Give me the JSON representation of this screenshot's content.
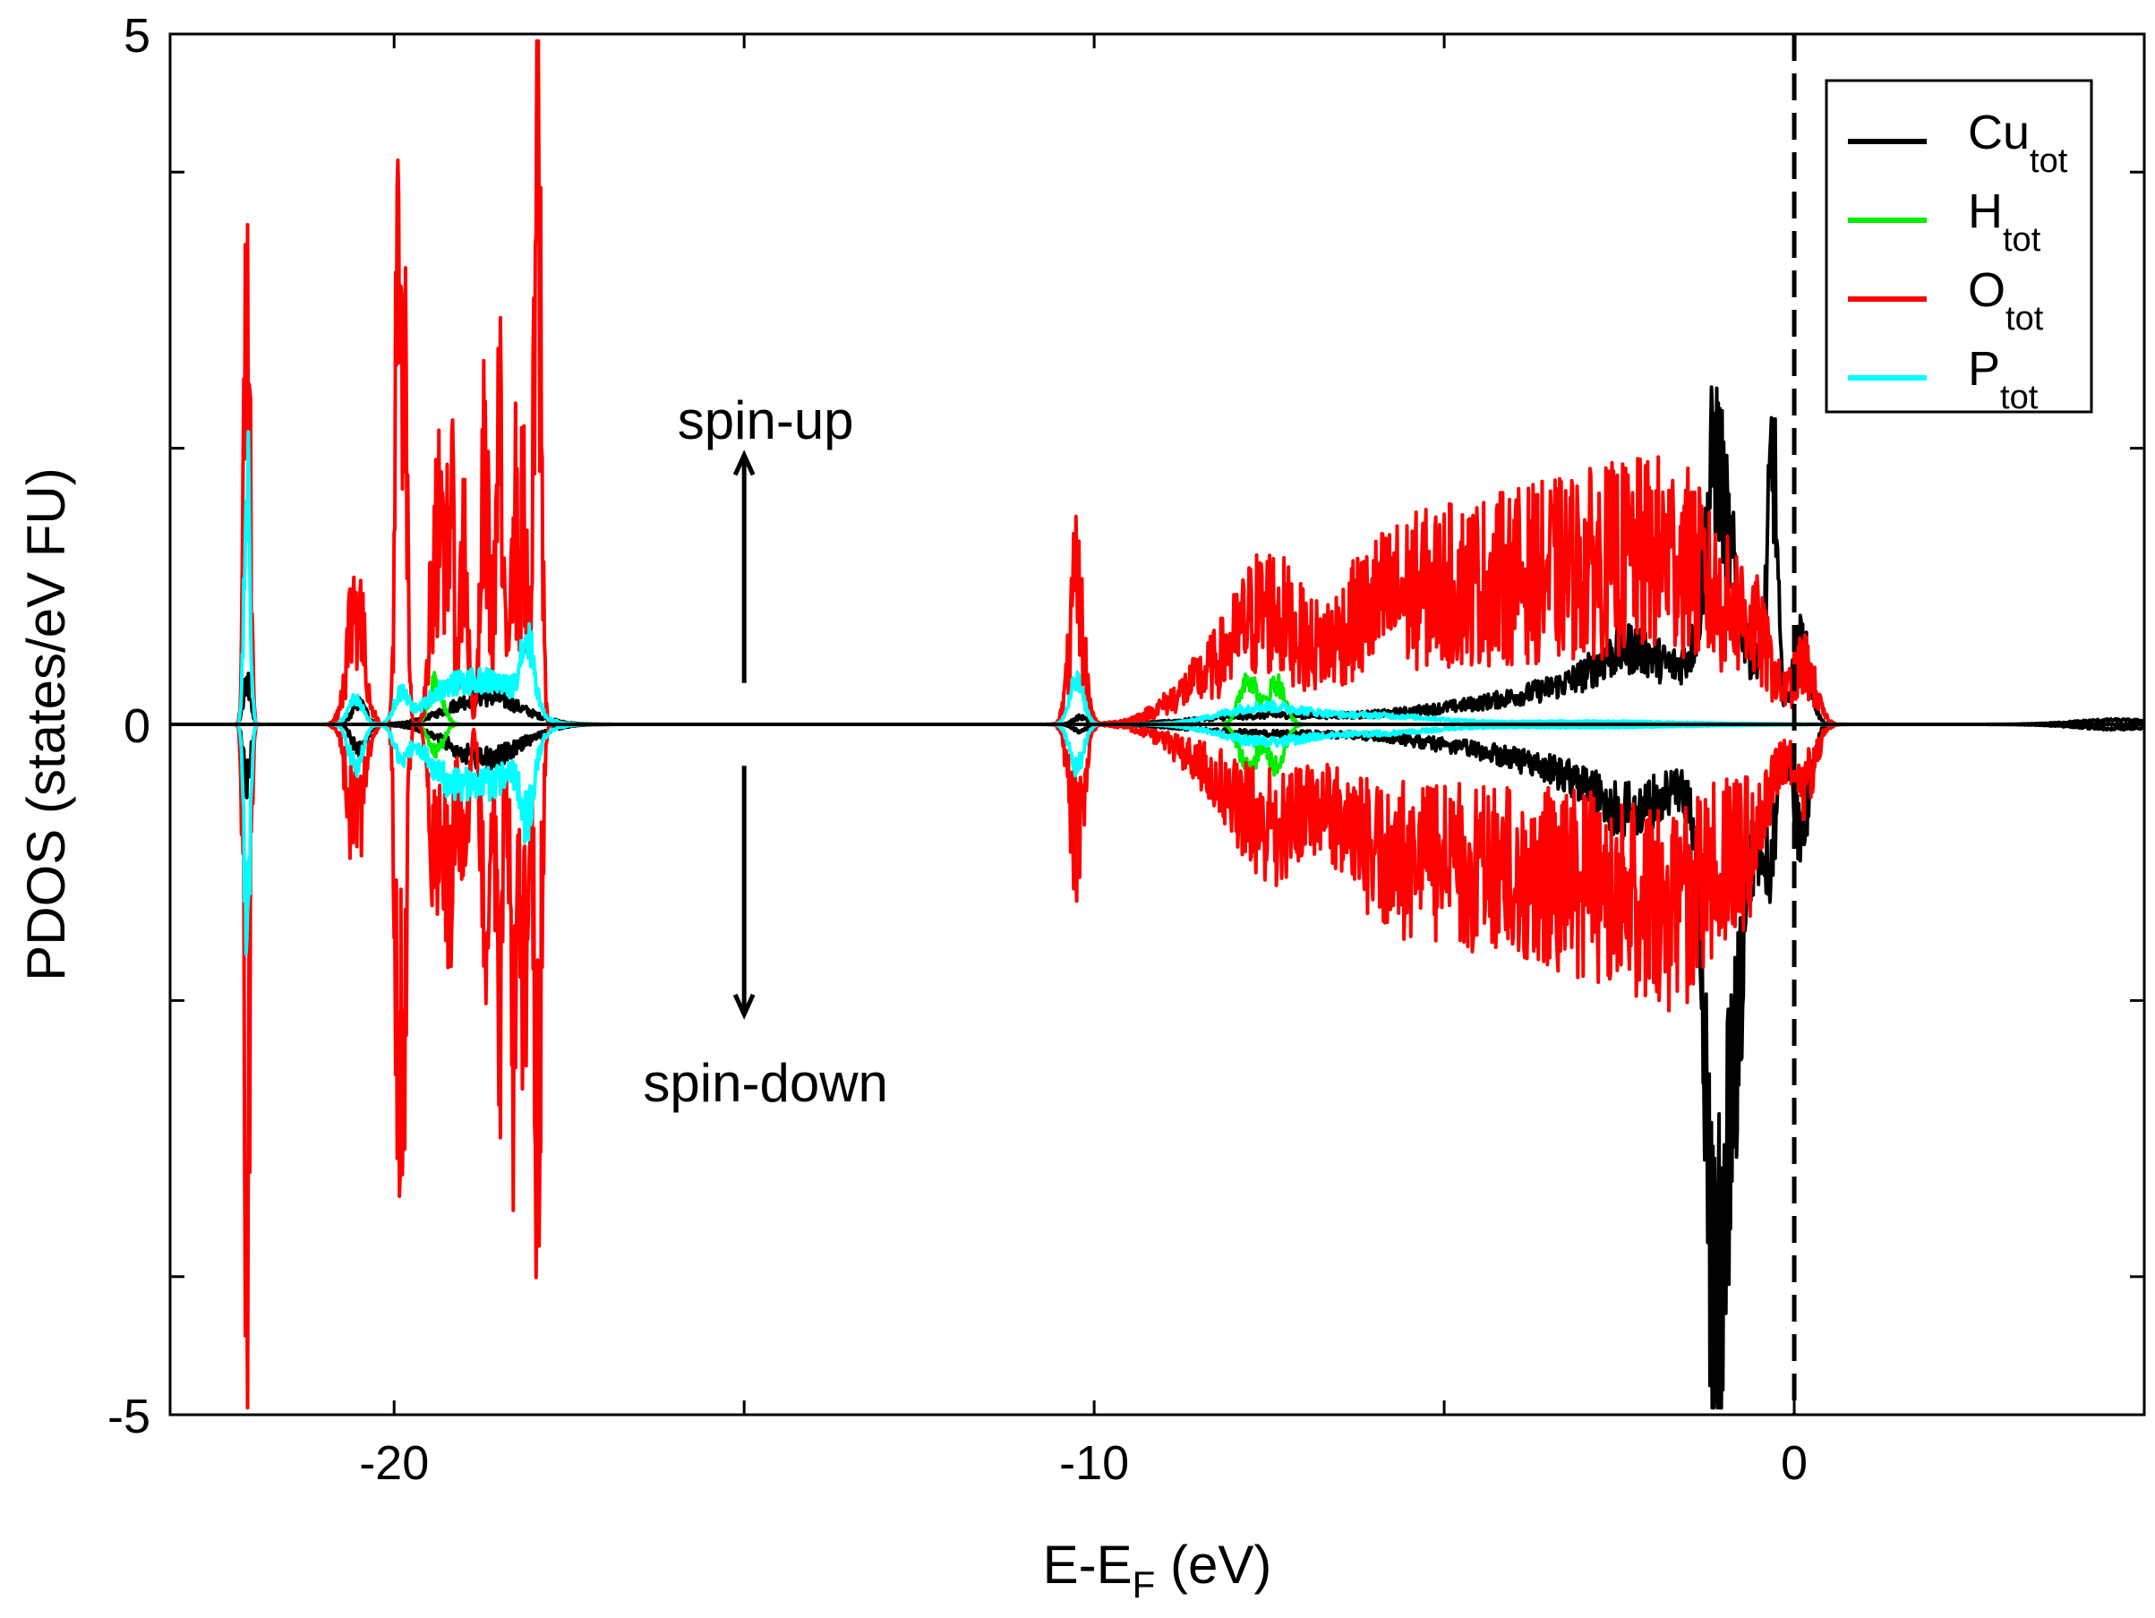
{
  "chart_data": {
    "type": "line",
    "xlabel_main": "E-E",
    "xlabel_sub": "F",
    "xlabel_tail": " (eV)",
    "ylabel": "PDOS (states/eV FU)",
    "xlim": [
      -23.2,
      5.0
    ],
    "ylim": [
      -5,
      5
    ],
    "x_ticks_labeled": [
      -20,
      -10,
      0
    ],
    "x_tick_labels": [
      "-20",
      "-10",
      "0"
    ],
    "x_ticks_minor": [
      -15,
      -5
    ],
    "y_ticks_labeled": [
      -5,
      0,
      5
    ],
    "y_tick_labels": [
      "-5",
      "0",
      "5"
    ],
    "y_ticks_minor": [
      -4,
      -2,
      2,
      4
    ],
    "fermi_level": 0,
    "annotations": {
      "spin_up": "spin-up",
      "spin_down": "spin-down",
      "arrow_x": -15
    },
    "legend_position": "top-right",
    "series": [
      {
        "name": "Cu",
        "sub": "tot",
        "color": "#000000",
        "noise": 0.35,
        "peaks": [
          {
            "c": -22.1,
            "w": 0.05,
            "up": 0.3,
            "dn": 0.4
          },
          {
            "c": -20.5,
            "w": 0.1,
            "up": 0.15,
            "dn": 0.2
          },
          {
            "c": -18.7,
            "w": 0.5,
            "up": 0.2,
            "dn": 0.25
          },
          {
            "c": -10.2,
            "w": 0.1,
            "up": 0.05,
            "dn": 0.05
          },
          {
            "c": -7.5,
            "w": 1.0,
            "up": 0.06,
            "dn": 0.06
          },
          {
            "c": -4.5,
            "w": 1.2,
            "up": 0.12,
            "dn": 0.15
          },
          {
            "c": -3.0,
            "w": 0.8,
            "up": 0.2,
            "dn": 0.25
          },
          {
            "c": -2.2,
            "w": 0.5,
            "up": 0.4,
            "dn": 0.45
          },
          {
            "c": -1.2,
            "w": 0.3,
            "up": 0.5,
            "dn": 0.5
          },
          {
            "c": -1.15,
            "w": 0.12,
            "up": 1.0,
            "dn": 2.8
          },
          {
            "c": -0.9,
            "w": 0.2,
            "up": 0.8,
            "dn": 2.2
          },
          {
            "c": -0.4,
            "w": 0.12,
            "up": 0.6,
            "dn": 0.8
          },
          {
            "c": -0.3,
            "w": 0.06,
            "up": 1.5,
            "dn": 0.3
          },
          {
            "c": 0.1,
            "w": 0.12,
            "up": 0.6,
            "dn": 0.8
          },
          {
            "c": 4.6,
            "w": 0.6,
            "up": 0.03,
            "dn": 0.03
          }
        ]
      },
      {
        "name": "H",
        "sub": "tot",
        "color": "#00ee00",
        "noise": 0.3,
        "peaks": [
          {
            "c": -19.4,
            "w": 0.1,
            "up": 0.3,
            "dn": 0.2
          },
          {
            "c": -7.8,
            "w": 0.12,
            "up": 0.35,
            "dn": 0.35
          },
          {
            "c": -7.4,
            "w": 0.12,
            "up": 0.3,
            "dn": 0.3
          }
        ]
      },
      {
        "name": "O",
        "sub": "tot",
        "color": "#ff0000",
        "noise": 0.6,
        "peaks": [
          {
            "c": -22.1,
            "w": 0.04,
            "up": 3.6,
            "dn": 3.8
          },
          {
            "c": -20.55,
            "w": 0.12,
            "up": 0.9,
            "dn": 0.8
          },
          {
            "c": -19.95,
            "w": 0.04,
            "up": 2.8,
            "dn": 2.7
          },
          {
            "c": -19.85,
            "w": 0.04,
            "up": 2.2,
            "dn": 2.0
          },
          {
            "c": -19.4,
            "w": 0.08,
            "up": 1.5,
            "dn": 1.2
          },
          {
            "c": -19.2,
            "w": 0.06,
            "up": 1.6,
            "dn": 1.3
          },
          {
            "c": -19.0,
            "w": 0.05,
            "up": 1.4,
            "dn": 1.4
          },
          {
            "c": -18.7,
            "w": 0.06,
            "up": 1.8,
            "dn": 1.5
          },
          {
            "c": -18.5,
            "w": 0.05,
            "up": 2.0,
            "dn": 2.0
          },
          {
            "c": -18.3,
            "w": 0.05,
            "up": 1.8,
            "dn": 2.2
          },
          {
            "c": -18.15,
            "w": 0.05,
            "up": 1.5,
            "dn": 2.1
          },
          {
            "c": -17.95,
            "w": 0.05,
            "up": 3.9,
            "dn": 3.0
          },
          {
            "c": -10.25,
            "w": 0.1,
            "up": 0.95,
            "dn": 0.85
          },
          {
            "c": -8.2,
            "w": 0.6,
            "up": 0.35,
            "dn": 0.3
          },
          {
            "c": -7.5,
            "w": 0.4,
            "up": 0.55,
            "dn": 0.5
          },
          {
            "c": -6.2,
            "w": 0.7,
            "up": 0.55,
            "dn": 0.6
          },
          {
            "c": -5.0,
            "w": 0.8,
            "up": 0.7,
            "dn": 0.7
          },
          {
            "c": -3.6,
            "w": 0.8,
            "up": 0.8,
            "dn": 0.8
          },
          {
            "c": -2.3,
            "w": 0.7,
            "up": 0.85,
            "dn": 0.85
          },
          {
            "c": -1.4,
            "w": 0.5,
            "up": 0.7,
            "dn": 0.8
          },
          {
            "c": -0.6,
            "w": 0.3,
            "up": 0.5,
            "dn": 0.6
          },
          {
            "c": 0.15,
            "w": 0.15,
            "up": 0.4,
            "dn": 0.4
          }
        ]
      },
      {
        "name": "P",
        "sub": "tot",
        "color": "#00ffff",
        "noise": 0.3,
        "peaks": [
          {
            "c": -22.1,
            "w": 0.04,
            "up": 1.8,
            "dn": 1.7
          },
          {
            "c": -20.55,
            "w": 0.1,
            "up": 0.2,
            "dn": 0.3
          },
          {
            "c": -19.9,
            "w": 0.1,
            "up": 0.2,
            "dn": 0.2
          },
          {
            "c": -19.3,
            "w": 0.3,
            "up": 0.2,
            "dn": 0.3
          },
          {
            "c": -18.6,
            "w": 0.4,
            "up": 0.3,
            "dn": 0.4
          },
          {
            "c": -18.1,
            "w": 0.1,
            "up": 0.5,
            "dn": 0.5
          },
          {
            "c": -10.25,
            "w": 0.1,
            "up": 0.3,
            "dn": 0.3
          },
          {
            "c": -7.6,
            "w": 0.6,
            "up": 0.12,
            "dn": 0.12
          },
          {
            "c": -6.0,
            "w": 0.8,
            "up": 0.06,
            "dn": 0.06
          },
          {
            "c": -3.0,
            "w": 1.5,
            "up": 0.02,
            "dn": 0.02
          }
        ]
      }
    ]
  }
}
